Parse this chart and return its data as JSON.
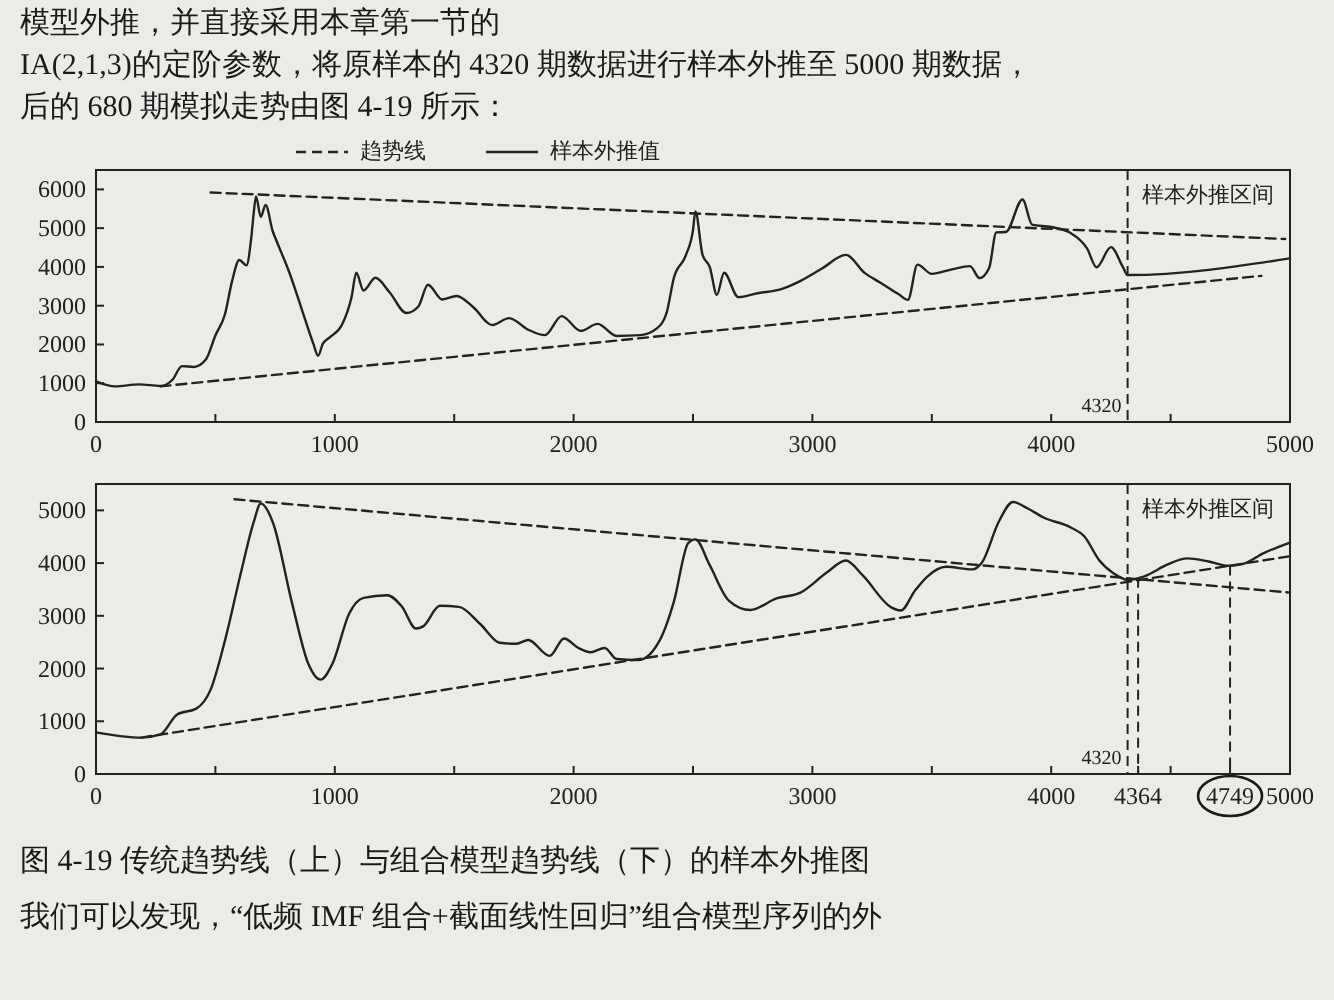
{
  "chart_data": [
    {
      "type": "line",
      "annotations": [
        "样本外推区间",
        "模型外推，并直接采用本章第一节的",
        "IA(2,1,3)的定阶参数，将原样本的 4320 期数据进行样本外推至 5000 期数据，",
        "后的 680 期模拟走势由图 4-19 所示："
      ],
      "legend": "top",
      "xlim": [
        0,
        5000
      ],
      "ylim": [
        0,
        6500
      ],
      "xticks": [
        0,
        {
          "value": 500,
          "label": null
        },
        1000,
        {
          "value": 1500,
          "label": null
        },
        2000,
        {
          "value": 2500,
          "label": null
        },
        3000,
        {
          "value": 3500,
          "label": null
        },
        4000,
        {
          "value": 4500,
          "label": null
        },
        5000
      ],
      "yticks": [
        0,
        1000,
        2000,
        3000,
        4000,
        5000,
        6000
      ],
      "ref_lines": [
        {
          "axis": "x",
          "value": 4320,
          "label": "4320",
          "line_style": "dashed"
        }
      ],
      "series": [
        {
          "name": "趋势线",
          "color": "#222222",
          "line_style": "dashed",
          "x": [
            480,
            4980
          ],
          "values": [
            5920,
            4720
          ]
        },
        {
          "color": "#222222",
          "line_style": "dashed",
          "x": [
            270,
            4880
          ],
          "values": [
            920,
            3770
          ]
        },
        {
          "name": "样本外推值",
          "color": "#222222",
          "x": [
            0,
            80,
            180,
            270,
            320,
            360,
            410,
            460,
            500,
            540,
            570,
            600,
            630,
            650,
            660,
            670,
            690,
            710,
            740,
            760,
            810,
            860,
            910,
            930,
            950,
            980,
            1030,
            1070,
            1090,
            1120,
            1170,
            1230,
            1300,
            1350,
            1390,
            1450,
            1510,
            1580,
            1660,
            1730,
            1810,
            1880,
            1950,
            2030,
            2100,
            2180,
            2280,
            2350,
            2390,
            2420,
            2470,
            2500,
            2510,
            2540,
            2570,
            2600,
            2630,
            2690,
            2770,
            2870,
            2940,
            3040,
            3140,
            3220,
            3280,
            3360,
            3400,
            3440,
            3500,
            3580,
            3660,
            3700,
            3740,
            3770,
            3810,
            3880,
            3920,
            4000,
            4080,
            4150,
            4190,
            4250,
            4300,
            4320,
            5000
          ],
          "values": [
            1050,
            920,
            970,
            930,
            1090,
            1440,
            1420,
            1610,
            2230,
            2780,
            3640,
            4180,
            4040,
            4740,
            5360,
            5820,
            5290,
            5600,
            4920,
            4610,
            3850,
            2940,
            2020,
            1710,
            2020,
            2190,
            2510,
            3220,
            3850,
            3390,
            3720,
            3340,
            2810,
            2980,
            3540,
            3160,
            3250,
            2960,
            2500,
            2680,
            2380,
            2240,
            2730,
            2350,
            2530,
            2220,
            2240,
            2420,
            2830,
            3720,
            4300,
            4950,
            5430,
            4310,
            4000,
            3280,
            3850,
            3220,
            3320,
            3430,
            3610,
            3960,
            4310,
            3840,
            3610,
            3300,
            3150,
            4060,
            3820,
            3930,
            4020,
            3710,
            3970,
            4890,
            4900,
            5740,
            5090,
            5030,
            4880,
            4480,
            3990,
            4510,
            4000,
            3790,
            4220
          ]
        }
      ]
    },
    {
      "type": "line",
      "annotations": [
        "样本外推区间",
        "图 4-19 传统趋势线（上）与组合模型趋势线（下）的样本外推图",
        "我们可以发现，“低频 IMF 组合+截面线性回归”组合模型序列的外"
      ],
      "xlim": [
        0,
        5000
      ],
      "ylim": [
        0,
        5500
      ],
      "xticks": [
        0,
        {
          "value": 500,
          "label": null
        },
        1000,
        {
          "value": 1500,
          "label": null
        },
        2000,
        {
          "value": 2500,
          "label": null
        },
        3000,
        {
          "value": 3500,
          "label": null
        },
        4000,
        4364,
        {
          "value": 4500,
          "label": null
        },
        4749,
        5000
      ],
      "yticks": [
        0,
        1000,
        2000,
        3000,
        4000,
        5000
      ],
      "ref_lines": [
        {
          "axis": "x",
          "value": 4320,
          "label": "4320",
          "line_style": "dashed"
        },
        {
          "axis": "x",
          "value": 4364,
          "line_style": "dashed"
        },
        {
          "axis": "x",
          "value": 4749,
          "line_style": "dashed"
        }
      ],
      "series": [
        {
          "color": "#222222",
          "line_style": "dashed",
          "x": [
            580,
            5000
          ],
          "values": [
            5210,
            3440
          ]
        },
        {
          "color": "#222222",
          "line_style": "dashed",
          "x": [
            190,
            5000
          ],
          "values": [
            690,
            4130
          ]
        },
        {
          "color": "#222222",
          "x": [
            0,
            190,
            270,
            340,
            420,
            480,
            540,
            610,
            660,
            690,
            740,
            820,
            890,
            940,
            990,
            1060,
            1120,
            1220,
            1280,
            1340,
            1370,
            1440,
            1520,
            1610,
            1690,
            1760,
            1810,
            1900,
            1960,
            2020,
            2070,
            2130,
            2180,
            2270,
            2360,
            2420,
            2480,
            2510,
            2570,
            2650,
            2740,
            2850,
            2950,
            3060,
            3140,
            3210,
            3330,
            3370,
            3430,
            3480,
            3560,
            3670,
            3710,
            3780,
            3840,
            3900,
            3970,
            4080,
            4140,
            4200,
            4260,
            4320,
            4390,
            4490,
            4570,
            4660,
            4740,
            4800,
            4890,
            5000
          ],
          "values": [
            790,
            690,
            750,
            1130,
            1240,
            1600,
            2530,
            3880,
            4770,
            5130,
            4780,
            3260,
            2080,
            1790,
            2090,
            3040,
            3340,
            3390,
            3180,
            2760,
            2800,
            3190,
            3170,
            2840,
            2490,
            2470,
            2540,
            2240,
            2570,
            2390,
            2310,
            2390,
            2180,
            2160,
            2530,
            3270,
            4380,
            4450,
            3960,
            3290,
            3110,
            3330,
            3440,
            3820,
            4050,
            3770,
            3160,
            3100,
            3480,
            3740,
            3930,
            3880,
            4010,
            4780,
            5160,
            5040,
            4860,
            4680,
            4500,
            4060,
            3810,
            3680,
            3750,
            3980,
            4090,
            4030,
            3950,
            3980,
            4190,
            4390
          ]
        }
      ]
    }
  ]
}
